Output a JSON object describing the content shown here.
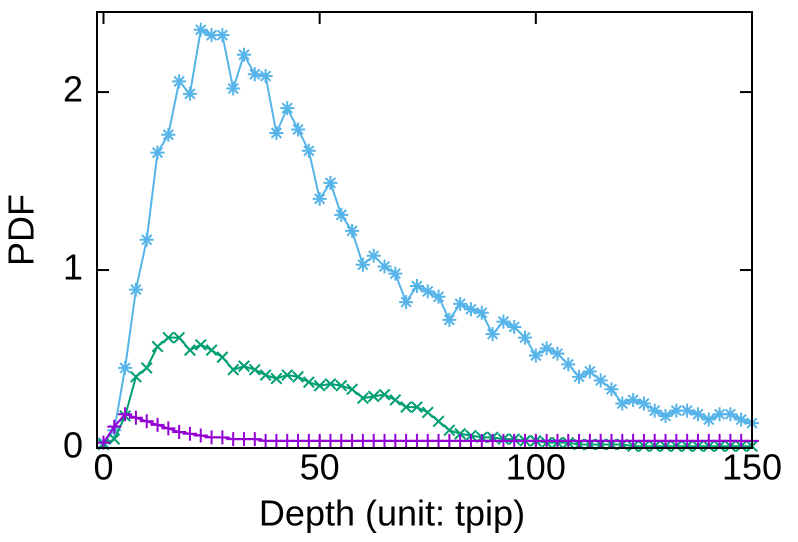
{
  "chart_data": {
    "type": "line",
    "x_label": "Depth (unit: tpip)",
    "y_label": "PDF",
    "x": [
      0,
      2.5,
      5,
      7.5,
      10,
      12.5,
      15,
      17.5,
      20,
      22.5,
      25,
      27.5,
      30,
      32.5,
      35,
      37.5,
      40,
      42.5,
      45,
      47.5,
      50,
      52.5,
      55,
      57.5,
      60,
      62.5,
      65,
      67.5,
      70,
      72.5,
      75,
      77.5,
      80,
      82.5,
      85,
      87.5,
      90,
      92.5,
      95,
      97.5,
      100,
      102.5,
      105,
      107.5,
      110,
      112.5,
      115,
      117.5,
      120,
      122.5,
      125,
      127.5,
      130,
      132.5,
      135,
      137.5,
      140,
      142.5,
      145,
      147.5,
      150
    ],
    "series": [
      {
        "color": "#56b4e9",
        "marker": "asterisk",
        "values": [
          0.03,
          0.1,
          0.45,
          0.89,
          1.17,
          1.66,
          1.76,
          2.06,
          1.99,
          2.35,
          2.32,
          2.32,
          2.02,
          2.21,
          2.1,
          2.09,
          1.77,
          1.91,
          1.79,
          1.67,
          1.4,
          1.49,
          1.31,
          1.22,
          1.03,
          1.08,
          1.02,
          0.98,
          0.82,
          0.91,
          0.88,
          0.85,
          0.72,
          0.81,
          0.78,
          0.76,
          0.64,
          0.71,
          0.68,
          0.62,
          0.52,
          0.56,
          0.53,
          0.47,
          0.4,
          0.43,
          0.38,
          0.33,
          0.25,
          0.27,
          0.25,
          0.21,
          0.18,
          0.21,
          0.21,
          0.19,
          0.16,
          0.19,
          0.19,
          0.16,
          0.14
        ]
      },
      {
        "color": "#009e73",
        "marker": "cross",
        "values": [
          0.02,
          0.05,
          0.18,
          0.4,
          0.45,
          0.57,
          0.62,
          0.62,
          0.55,
          0.58,
          0.55,
          0.51,
          0.44,
          0.46,
          0.44,
          0.41,
          0.39,
          0.41,
          0.4,
          0.37,
          0.35,
          0.36,
          0.35,
          0.33,
          0.28,
          0.29,
          0.3,
          0.27,
          0.23,
          0.23,
          0.2,
          0.15,
          0.1,
          0.08,
          0.07,
          0.06,
          0.06,
          0.05,
          0.05,
          0.04,
          0.04,
          0.03,
          0.03,
          0.03,
          0.02,
          0.02,
          0.02,
          0.02,
          0.02,
          0.01,
          0.01,
          0.01,
          0.01,
          0.01,
          0.01,
          0.01,
          0.01,
          0.01,
          0.01,
          0.01,
          0.01
        ]
      },
      {
        "color": "#9400d3",
        "marker": "plus",
        "values": [
          0.03,
          0.12,
          0.19,
          0.17,
          0.15,
          0.13,
          0.11,
          0.09,
          0.08,
          0.07,
          0.06,
          0.06,
          0.05,
          0.05,
          0.05,
          0.04,
          0.04,
          0.04,
          0.04,
          0.04,
          0.04,
          0.04,
          0.04,
          0.04,
          0.04,
          0.04,
          0.04,
          0.04,
          0.04,
          0.04,
          0.04,
          0.04,
          0.04,
          0.04,
          0.04,
          0.04,
          0.04,
          0.04,
          0.04,
          0.04,
          0.04,
          0.04,
          0.04,
          0.04,
          0.04,
          0.04,
          0.04,
          0.04,
          0.04,
          0.04,
          0.04,
          0.04,
          0.04,
          0.04,
          0.04,
          0.04,
          0.04,
          0.04,
          0.04,
          0.04,
          0.04
        ]
      }
    ],
    "xlim": [
      -1.5,
      150
    ],
    "ylim": [
      0,
      2.45
    ],
    "xticks": [
      0,
      50,
      100,
      150
    ],
    "yticks": [
      0,
      1,
      2
    ]
  }
}
